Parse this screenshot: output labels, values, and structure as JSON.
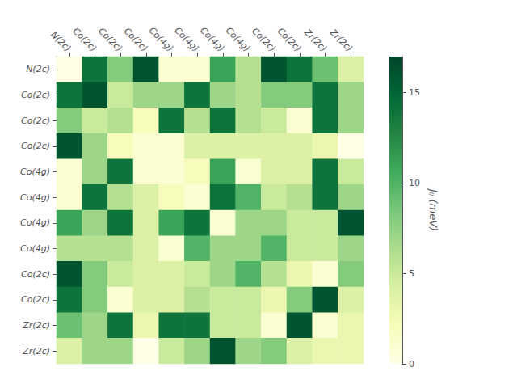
{
  "chart_data": {
    "type": "heatmap",
    "categories": [
      "N(2c)",
      "Co(2c)",
      "Co(2c)",
      "Co(2c)",
      "Co(4g)",
      "Co(4g)",
      "Co(4g)",
      "Co(4g)",
      "Co(2c)",
      "Co(2c)",
      "Zr(2c)",
      "Zr(2c)"
    ],
    "y_categories": [
      "N(2c)",
      "Co(2c)",
      "Co(2c)",
      "Co(2c)",
      "Co(4g)",
      "Co(4g)",
      "Co(4g)",
      "Co(4g)",
      "Co(2c)",
      "Co(2c)",
      "Zr(2c)",
      "Zr(2c)"
    ],
    "values": [
      [
        0,
        14,
        8,
        16,
        1,
        1,
        11,
        6,
        16,
        14,
        9,
        4
      ],
      [
        14,
        16,
        5,
        7,
        7,
        14,
        7,
        6,
        8,
        8,
        14,
        7
      ],
      [
        8,
        5,
        6,
        2,
        14,
        6,
        14,
        6,
        5,
        1,
        14,
        7
      ],
      [
        16,
        7,
        2,
        1,
        1,
        4,
        4,
        4,
        4,
        4,
        3,
        0
      ],
      [
        1,
        7,
        14,
        1,
        1,
        2,
        11,
        1,
        4,
        4,
        14,
        5
      ],
      [
        1,
        14,
        6,
        4,
        2,
        1,
        14,
        10,
        5,
        6,
        14,
        7
      ],
      [
        11,
        7,
        14,
        4,
        11,
        14,
        1,
        7,
        7,
        5,
        5,
        16
      ],
      [
        6,
        6,
        6,
        4,
        1,
        10,
        7,
        7,
        10,
        5,
        5,
        7
      ],
      [
        16,
        8,
        5,
        4,
        4,
        5,
        7,
        10,
        6,
        3,
        1,
        8
      ],
      [
        14,
        8,
        1,
        4,
        4,
        6,
        5,
        5,
        3,
        8,
        16,
        4
      ],
      [
        9,
        7,
        14,
        3,
        14,
        14,
        5,
        5,
        1,
        16,
        1,
        3
      ],
      [
        4,
        7,
        7,
        0,
        5,
        7,
        16,
        7,
        8,
        4,
        3,
        3
      ]
    ],
    "color": "YlGn",
    "colorbar_range": [
      0,
      17
    ],
    "colorbar_ticks": [
      0,
      5,
      10,
      15
    ],
    "colorbar_label": "Jᵢⱼ (meV)",
    "grid": false
  }
}
